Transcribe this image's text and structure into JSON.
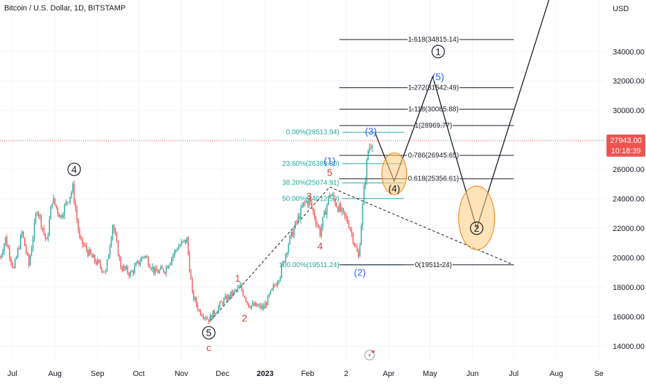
{
  "chart_data": {
    "type": "candlestick",
    "title": "Bitcoin / U.S. Dollar, 1D, BITSTAMP",
    "currency_label": "USD",
    "ylim": [
      13000,
      37500
    ],
    "xlim": [
      "2022-06-22",
      "2023-09-05"
    ],
    "y_ticks": [
      {
        "value": 34000,
        "label": "34000.00"
      },
      {
        "value": 32000,
        "label": "32000.00"
      },
      {
        "value": 30000,
        "label": "30000.00"
      },
      {
        "value": 28000,
        "label": "28000.00"
      },
      {
        "value": 26000,
        "label": "26000.00"
      },
      {
        "value": 24000,
        "label": "24000.00"
      },
      {
        "value": 22000,
        "label": "22000.00"
      },
      {
        "value": 20000,
        "label": "20000.00"
      },
      {
        "value": 18000,
        "label": "18000.00"
      },
      {
        "value": 16000,
        "label": "16000.00"
      },
      {
        "value": 14000,
        "label": "14000.00"
      }
    ],
    "x_ticks": [
      {
        "date": "2022-07-01",
        "label": "Jul"
      },
      {
        "date": "2022-08-01",
        "label": "Aug"
      },
      {
        "date": "2022-09-01",
        "label": "Sep"
      },
      {
        "date": "2022-10-01",
        "label": "Oct"
      },
      {
        "date": "2022-11-01",
        "label": "Nov"
      },
      {
        "date": "2022-12-01",
        "label": "Dec"
      },
      {
        "date": "2023-01-01",
        "label": "2023",
        "bold": true
      },
      {
        "date": "2023-02-01",
        "label": "Feb"
      },
      {
        "date": "2023-03-01",
        "label": "2"
      },
      {
        "date": "2023-04-01",
        "label": "Apr"
      },
      {
        "date": "2023-05-01",
        "label": "May"
      },
      {
        "date": "2023-06-01",
        "label": "Jun"
      },
      {
        "date": "2023-07-01",
        "label": "Jul"
      },
      {
        "date": "2023-08-01",
        "label": "Aug"
      },
      {
        "date": "2023-09-01",
        "label": "Se"
      }
    ],
    "current_price": {
      "value": 27943,
      "label": "27943.00",
      "countdown": "10:18:39"
    },
    "colors": {
      "up": "#26a69a",
      "down": "#ef5350",
      "grid": "#f0f3fa",
      "fib": "#26a69a",
      "current": "#ef5350",
      "wave_red": "#e53935",
      "wave_blue": "#2962ff",
      "black": "#131722",
      "ellipse_fill": "#ffcc80",
      "ellipse_stroke": "#f57c00"
    },
    "price_path": [
      {
        "date": "2022-06-22",
        "price": 20000
      },
      {
        "date": "2022-06-26",
        "price": 21300
      },
      {
        "date": "2022-07-02",
        "price": 19200
      },
      {
        "date": "2022-07-08",
        "price": 21700
      },
      {
        "date": "2022-07-13",
        "price": 19500
      },
      {
        "date": "2022-07-19",
        "price": 23400
      },
      {
        "date": "2022-07-26",
        "price": 21000
      },
      {
        "date": "2022-07-30",
        "price": 24000
      },
      {
        "date": "2022-08-05",
        "price": 22800
      },
      {
        "date": "2022-08-14",
        "price": 24700
      },
      {
        "date": "2022-08-19",
        "price": 21200
      },
      {
        "date": "2022-08-28",
        "price": 20000
      },
      {
        "date": "2022-09-07",
        "price": 19000
      },
      {
        "date": "2022-09-12",
        "price": 22300
      },
      {
        "date": "2022-09-18",
        "price": 19400
      },
      {
        "date": "2022-09-25",
        "price": 18900
      },
      {
        "date": "2022-10-05",
        "price": 20200
      },
      {
        "date": "2022-10-13",
        "price": 19000
      },
      {
        "date": "2022-10-20",
        "price": 19200
      },
      {
        "date": "2022-10-29",
        "price": 20700
      },
      {
        "date": "2022-11-05",
        "price": 21200
      },
      {
        "date": "2022-11-09",
        "price": 17500
      },
      {
        "date": "2022-11-14",
        "price": 16400
      },
      {
        "date": "2022-11-21",
        "price": 15800
      },
      {
        "date": "2022-12-01",
        "price": 17000
      },
      {
        "date": "2022-12-14",
        "price": 18000
      },
      {
        "date": "2022-12-20",
        "price": 16800
      },
      {
        "date": "2022-12-31",
        "price": 16600
      },
      {
        "date": "2023-01-12",
        "price": 18900
      },
      {
        "date": "2023-01-18",
        "price": 21000
      },
      {
        "date": "2023-01-29",
        "price": 23600
      },
      {
        "date": "2023-02-02",
        "price": 23900
      },
      {
        "date": "2023-02-10",
        "price": 21700
      },
      {
        "date": "2023-02-17",
        "price": 24400
      },
      {
        "date": "2023-02-24",
        "price": 23300
      },
      {
        "date": "2023-03-03",
        "price": 22300
      },
      {
        "date": "2023-03-10",
        "price": 20000
      },
      {
        "date": "2023-03-14",
        "price": 24600
      },
      {
        "date": "2023-03-17",
        "price": 27300
      },
      {
        "date": "2023-03-20",
        "price": 28000
      }
    ],
    "fib_retracement": [
      {
        "label": "0.00%(28513.94)",
        "value": 28513.94
      },
      {
        "label": "23.60%(26389.30)",
        "value": 26389.3
      },
      {
        "label": "38.20%(25074.91)",
        "value": 25074.91
      },
      {
        "label": "50.00%(24012.59)",
        "value": 24012.59
      },
      {
        "label": "100.00%(19511.24)",
        "value": 19511.24
      }
    ],
    "fib_extension": [
      {
        "label": "1.618(34815.14)",
        "value": 34815.14
      },
      {
        "label": "1.272(31542.49)",
        "value": 31542.49
      },
      {
        "label": "1.118(30085.88)",
        "value": 30085.88
      },
      {
        "label": "1(28969.77)",
        "value": 28969.77
      },
      {
        "label": "0.786(26945.65)",
        "value": 26945.65
      },
      {
        "label": "0.618(25356.61)",
        "value": 25356.61
      },
      {
        "label": "0(19511.24)",
        "value": 19511.24
      }
    ],
    "projection_path": [
      {
        "date": "2023-03-22",
        "price": 28500
      },
      {
        "date": "2023-04-05",
        "price": 25200
      },
      {
        "date": "2023-05-03",
        "price": 32300
      },
      {
        "date": "2023-06-04",
        "price": 22000
      },
      {
        "date": "2023-07-30",
        "price": 38500
      }
    ],
    "trendlines": [
      {
        "from": {
          "date": "2022-11-22",
          "price": 15700
        },
        "to": {
          "date": "2023-02-17",
          "price": 24800
        }
      },
      {
        "from": {
          "date": "2023-02-17",
          "price": 24800
        },
        "to": {
          "date": "2023-07-01",
          "price": 19500
        }
      }
    ],
    "highlight_zones": [
      {
        "date": "2023-04-05",
        "price": 25700
      },
      {
        "date": "2023-06-04",
        "price": 22700
      }
    ],
    "wave_labels": [
      {
        "text": "4",
        "style": "circle",
        "color": "black",
        "date": "2022-08-15",
        "price": 26000
      },
      {
        "text": "5",
        "style": "circle",
        "color": "black",
        "date": "2022-11-21",
        "price": 14900
      },
      {
        "text": "c",
        "style": "plain",
        "color": "red",
        "date": "2022-11-21",
        "price": 13900
      },
      {
        "text": "1",
        "style": "plain",
        "color": "red",
        "date": "2022-12-12",
        "price": 18600
      },
      {
        "text": "2",
        "style": "plain",
        "color": "red",
        "date": "2022-12-17",
        "price": 15900
      },
      {
        "text": "3",
        "style": "plain",
        "color": "red",
        "date": "2023-02-02",
        "price": 24200
      },
      {
        "text": "4",
        "style": "plain",
        "color": "red",
        "date": "2023-02-10",
        "price": 20800
      },
      {
        "text": "5",
        "style": "plain",
        "color": "red",
        "date": "2023-02-17",
        "price": 25800
      },
      {
        "text": "(1)",
        "style": "plain",
        "color": "blue",
        "date": "2023-02-17",
        "price": 26600
      },
      {
        "text": "(2)",
        "style": "plain",
        "color": "blue",
        "date": "2023-03-11",
        "price": 19000
      },
      {
        "text": "(3)",
        "style": "plain",
        "color": "blue",
        "date": "2023-03-19",
        "price": 28600
      },
      {
        "text": "(4)",
        "style": "plain",
        "color": "black",
        "date": "2023-04-05",
        "price": 24700
      },
      {
        "text": "(5)",
        "style": "plain",
        "color": "blue",
        "date": "2023-05-07",
        "price": 32300
      },
      {
        "text": "1",
        "style": "circle",
        "color": "black",
        "date": "2023-05-07",
        "price": 34000
      },
      {
        "text": "2",
        "style": "circle",
        "color": "black",
        "date": "2023-06-04",
        "price": 22000
      }
    ]
  }
}
